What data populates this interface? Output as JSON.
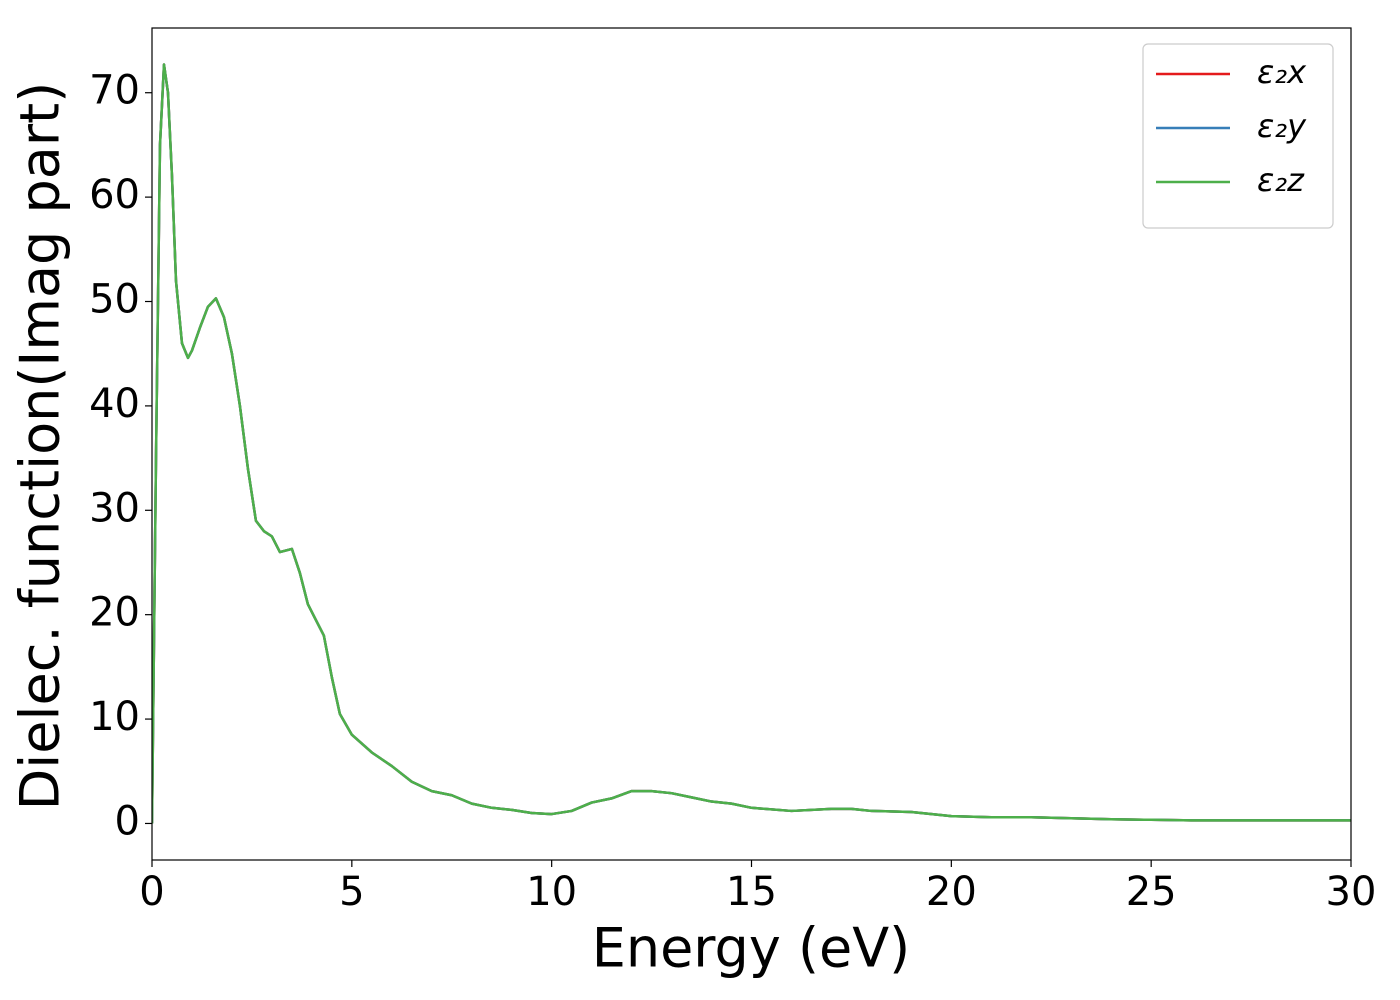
{
  "chart_data": {
    "type": "line",
    "xlabel": "Energy (eV)",
    "ylabel": "Dielec. function(Imag part)",
    "x": [
      0,
      0.1,
      0.2,
      0.3,
      0.4,
      0.5,
      0.6,
      0.75,
      0.9,
      1.0,
      1.2,
      1.4,
      1.6,
      1.8,
      2.0,
      2.2,
      2.4,
      2.6,
      2.8,
      3.0,
      3.2,
      3.5,
      3.7,
      3.9,
      4.1,
      4.3,
      4.5,
      4.7,
      5.0,
      5.5,
      6,
      6.5,
      7,
      7.5,
      8,
      8.5,
      9,
      9.5,
      10,
      10.5,
      11,
      11.5,
      12,
      12.5,
      13,
      13.5,
      14,
      14.5,
      15,
      16,
      17,
      17.5,
      18,
      19,
      20,
      21,
      22,
      23,
      24,
      25,
      26,
      27,
      28,
      29,
      30
    ],
    "series": [
      {
        "name": "ε₂x",
        "color": "#e41a1c",
        "values": [
          0,
          35,
          65,
          72.7,
          70,
          62,
          52,
          46,
          44.6,
          45.3,
          47.5,
          49.5,
          50.3,
          48.5,
          45,
          40,
          34,
          29,
          28,
          27.5,
          26,
          26.3,
          24,
          21,
          19.5,
          18,
          14,
          10.5,
          8.5,
          6.8,
          5.5,
          4,
          3.1,
          2.7,
          1.9,
          1.5,
          1.3,
          1,
          0.9,
          1.2,
          2,
          2.4,
          3.1,
          3.1,
          2.9,
          2.5,
          2.1,
          1.9,
          1.5,
          1.2,
          1.4,
          1.4,
          1.2,
          1.1,
          0.7,
          0.6,
          0.6,
          0.5,
          0.4,
          0.35,
          0.3,
          0.3,
          0.3,
          0.3,
          0.3
        ]
      },
      {
        "name": "ε₂y",
        "color": "#377eb8",
        "values": [
          0,
          35,
          65,
          72.7,
          70,
          62,
          52,
          46,
          44.6,
          45.3,
          47.5,
          49.5,
          50.3,
          48.5,
          45,
          40,
          34,
          29,
          28,
          27.5,
          26,
          26.3,
          24,
          21,
          19.5,
          18,
          14,
          10.5,
          8.5,
          6.8,
          5.5,
          4,
          3.1,
          2.7,
          1.9,
          1.5,
          1.3,
          1,
          0.9,
          1.2,
          2,
          2.4,
          3.1,
          3.1,
          2.9,
          2.5,
          2.1,
          1.9,
          1.5,
          1.2,
          1.4,
          1.4,
          1.2,
          1.1,
          0.7,
          0.6,
          0.6,
          0.5,
          0.4,
          0.35,
          0.3,
          0.3,
          0.3,
          0.3,
          0.3
        ]
      },
      {
        "name": "ε₂z",
        "color": "#4daf4a",
        "values": [
          0,
          35,
          65,
          72.7,
          70,
          62,
          52,
          46,
          44.6,
          45.3,
          47.5,
          49.5,
          50.3,
          48.5,
          45,
          40,
          34,
          29,
          28,
          27.5,
          26,
          26.3,
          24,
          21,
          19.5,
          18,
          14,
          10.5,
          8.5,
          6.8,
          5.5,
          4,
          3.1,
          2.7,
          1.9,
          1.5,
          1.3,
          1,
          0.9,
          1.2,
          2,
          2.4,
          3.1,
          3.1,
          2.9,
          2.5,
          2.1,
          1.9,
          1.5,
          1.2,
          1.4,
          1.4,
          1.2,
          1.1,
          0.7,
          0.6,
          0.6,
          0.5,
          0.4,
          0.35,
          0.3,
          0.3,
          0.3,
          0.3,
          0.3
        ]
      }
    ],
    "xlim": [
      0,
      30
    ],
    "xticks": [
      0,
      5,
      10,
      15,
      20,
      25,
      30
    ],
    "ylim": [
      -3.5,
      76.2
    ],
    "yticks": [
      0,
      10,
      20,
      30,
      40,
      50,
      60,
      70
    ],
    "legend": "upper right",
    "grid": false
  }
}
